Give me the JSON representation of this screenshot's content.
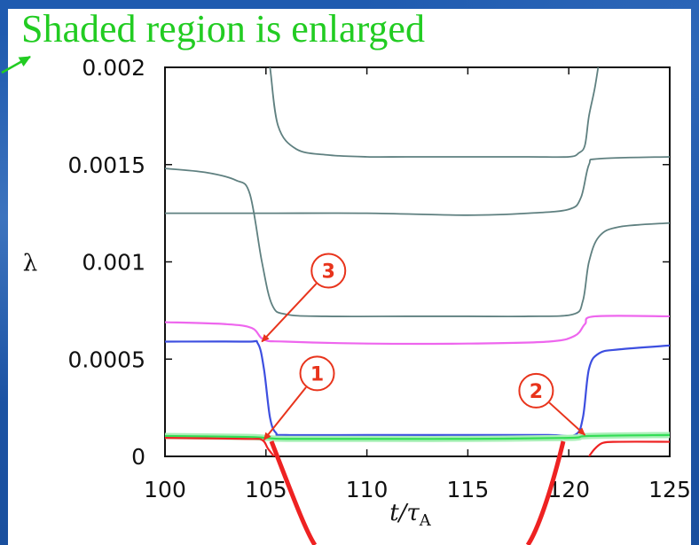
{
  "headline": "Shaded region is enlarged",
  "colors": {
    "headline": "#22cc22",
    "callout": "#e8341c",
    "gray": "#5f8080",
    "magenta": "#ee66ee",
    "blue": "#3d4fe0",
    "green": "#33dd55",
    "red": "#ee2222"
  },
  "chart_data": {
    "type": "line",
    "title": "",
    "xlabel": "t/τ",
    "xlabel_sub": "A",
    "ylabel": "λ",
    "xlim": [
      100,
      125
    ],
    "ylim": [
      0,
      0.002
    ],
    "xticks": [
      "100",
      "105",
      "110",
      "115",
      "120",
      "125"
    ],
    "yticks": [
      "0",
      "0.0005",
      "0.001",
      "0.0015",
      "0.002"
    ],
    "grid": false,
    "series": [
      {
        "color": "gray",
        "x": [
          105.0,
          105.2,
          105.6,
          106.5,
          108,
          110,
          112,
          115,
          118,
          120,
          120.5,
          120.8,
          121.0,
          121.3,
          121.6
        ],
        "y": [
          0.0021,
          0.002,
          0.0017,
          0.00158,
          0.00155,
          0.00154,
          0.00154,
          0.00154,
          0.00154,
          0.00154,
          0.00156,
          0.0016,
          0.00175,
          0.0019,
          0.0021
        ]
      },
      {
        "color": "gray",
        "x": [
          100,
          102,
          103.5,
          104.2,
          104.8,
          105.3,
          106,
          108,
          112,
          115,
          118,
          120.2,
          120.7,
          121.0,
          121.5,
          122.5,
          125
        ],
        "y": [
          0.00148,
          0.00146,
          0.00142,
          0.00135,
          0.001,
          0.00078,
          0.00073,
          0.00072,
          0.00072,
          0.00072,
          0.00072,
          0.00073,
          0.0008,
          0.001,
          0.00113,
          0.00118,
          0.0012
        ]
      },
      {
        "color": "gray",
        "x": [
          100,
          105,
          110,
          115,
          118,
          120,
          120.6,
          121.0,
          121.5,
          125
        ],
        "y": [
          0.00125,
          0.00125,
          0.00125,
          0.00124,
          0.00125,
          0.00127,
          0.00133,
          0.0015,
          0.00153,
          0.00154
        ]
      },
      {
        "color": "magenta",
        "x": [
          100,
          103,
          104.3,
          104.9,
          106,
          110,
          115,
          119,
          120.3,
          120.8,
          121.3,
          125
        ],
        "y": [
          0.00069,
          0.00068,
          0.00066,
          0.0006,
          0.00059,
          0.00058,
          0.00058,
          0.00059,
          0.00062,
          0.00068,
          0.00072,
          0.00072
        ]
      },
      {
        "color": "blue",
        "x": [
          100,
          104,
          104.6,
          104.9,
          105.2,
          105.5,
          106,
          110,
          115,
          119,
          120.3,
          120.7,
          121.0,
          121.5,
          122.5,
          125
        ],
        "y": [
          0.00059,
          0.00059,
          0.00058,
          0.00045,
          0.0002,
          0.00012,
          0.00011,
          0.00011,
          0.00011,
          0.00011,
          0.00011,
          0.0002,
          0.00045,
          0.00053,
          0.00055,
          0.00057
        ]
      },
      {
        "color": "green",
        "x": [
          100,
          104,
          105,
          106,
          110,
          115,
          120,
          121,
          125
        ],
        "y": [
          0.000105,
          0.0001,
          9.5e-05,
          9e-05,
          9e-05,
          9e-05,
          9.5e-05,
          0.000105,
          0.00011
        ]
      },
      {
        "color": "red",
        "x": [
          100,
          104,
          104.8,
          105.1,
          105.4
        ],
        "y": [
          9.5e-05,
          9e-05,
          8.5e-05,
          4e-05,
          0.0
        ]
      },
      {
        "color": "red",
        "x": [
          121.0,
          121.3,
          121.7,
          122.5,
          125
        ],
        "y": [
          0.0,
          4e-05,
          7e-05,
          7.5e-05,
          7.5e-05
        ]
      }
    ],
    "callouts": [
      {
        "label": "3",
        "tip": [
          104.8,
          0.00059
        ]
      },
      {
        "label": "1",
        "tip": [
          104.9,
          8.5e-05
        ]
      },
      {
        "label": "2",
        "tip": [
          120.8,
          0.00011
        ]
      }
    ]
  }
}
